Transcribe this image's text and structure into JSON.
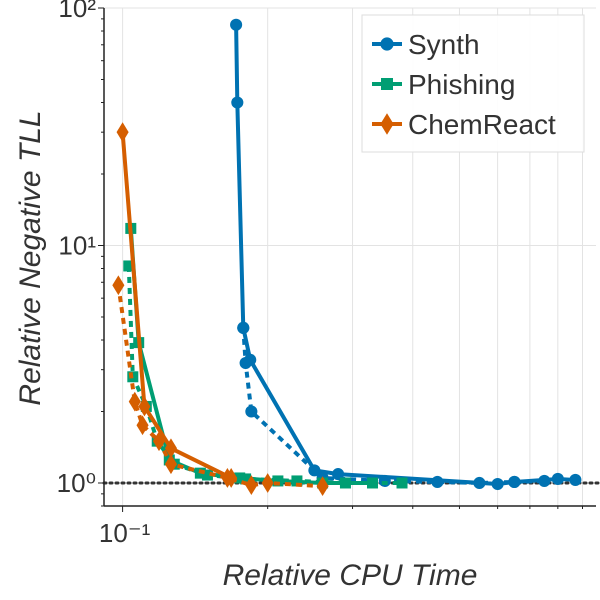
{
  "chart_data": {
    "type": "line",
    "title": "",
    "xlabel": "Relative CPU Time",
    "ylabel": "Relative Negative TLL",
    "xscale": "log",
    "yscale": "log",
    "xlim": [
      0.0915,
      0.96
    ],
    "ylim": [
      0.8,
      100
    ],
    "grid": true,
    "legend_position": "top-right",
    "x_ticks": [
      {
        "value": 0.1,
        "label": "10⁻¹"
      }
    ],
    "y_ticks": [
      {
        "value": 1,
        "label": "10⁰"
      },
      {
        "value": 10,
        "label": "10¹"
      },
      {
        "value": 100,
        "label": "10²"
      }
    ],
    "reference_line": {
      "y": 1,
      "style": "dotted",
      "color": "#333333"
    },
    "series": [
      {
        "name": "Synth",
        "color": "#0072b2",
        "marker": "circle",
        "solid": {
          "x": [
            0.172,
            0.173,
            0.178,
            0.184,
            0.25,
            0.28,
            0.6,
            0.65,
            0.8,
            0.87
          ],
          "y": [
            85,
            40,
            4.5,
            3.3,
            1.13,
            1.09,
            0.99,
            1.01,
            1.04,
            1.03
          ]
        },
        "dashed": {
          "x": [
            0.178,
            0.18,
            0.185,
            0.26,
            0.35,
            0.45,
            0.55,
            0.65,
            0.75
          ],
          "y": [
            4.5,
            3.2,
            2.0,
            1.05,
            1.02,
            1.01,
            1.0,
            1.01,
            1.02
          ]
        }
      },
      {
        "name": "Phishing",
        "color": "#009e73",
        "marker": "square",
        "solid": {
          "x": [
            0.104,
            0.108,
            0.125,
            0.145,
            0.175,
            0.21,
            0.26,
            0.33
          ],
          "y": [
            11.8,
            3.9,
            1.25,
            1.1,
            1.05,
            1.02,
            1.0,
            1.0
          ]
        },
        "dashed": {
          "x": [
            0.103,
            0.105,
            0.112,
            0.118,
            0.128,
            0.15,
            0.18,
            0.23,
            0.29,
            0.38
          ],
          "y": [
            8.2,
            2.8,
            2.1,
            1.5,
            1.2,
            1.08,
            1.04,
            1.02,
            1.0,
            1.0
          ]
        }
      },
      {
        "name": "ChemReact",
        "color": "#d55e00",
        "marker": "diamond",
        "solid": {
          "x": [
            0.1,
            0.111,
            0.126,
            0.168
          ],
          "y": [
            30,
            2.1,
            1.4,
            1.05
          ]
        },
        "dashed": {
          "x": [
            0.098,
            0.106,
            0.11,
            0.119,
            0.126,
            0.165,
            0.185,
            0.2,
            0.26
          ],
          "y": [
            6.8,
            2.2,
            1.75,
            1.5,
            1.2,
            1.05,
            0.98,
            1.0,
            0.97
          ]
        }
      }
    ]
  }
}
